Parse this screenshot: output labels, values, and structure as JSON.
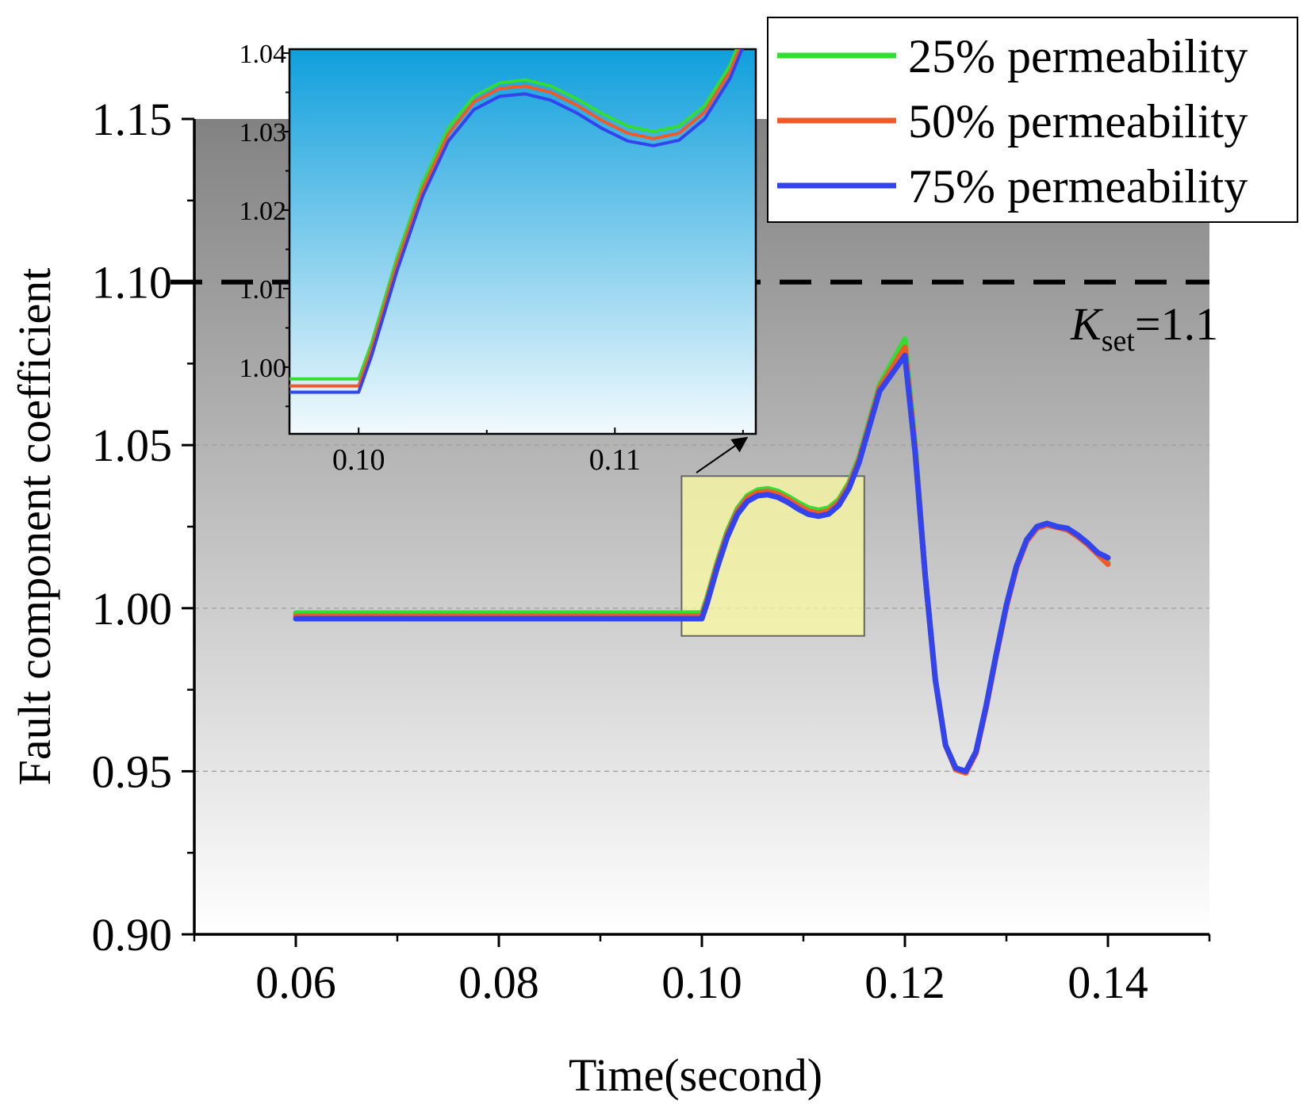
{
  "chart_data": {
    "type": "line",
    "title": "",
    "xlabel": "Time(second)",
    "ylabel": "Fault component coefficient",
    "xlim": [
      0.05,
      0.15
    ],
    "ylim": [
      0.9,
      1.15
    ],
    "x_ticks": [
      0.06,
      0.08,
      0.1,
      0.12,
      0.14
    ],
    "x_tick_labels": [
      "0.06",
      "0.08",
      "0.10",
      "0.12",
      "0.14"
    ],
    "y_ticks": [
      0.9,
      0.95,
      1.0,
      1.05,
      1.1,
      1.15
    ],
    "y_tick_labels": [
      "0.90",
      "0.95",
      "1.00",
      "1.05",
      "1.10",
      "1.15"
    ],
    "grid": "dashed at 0.95, 1.00, 1.05",
    "legend_position": "top-right",
    "threshold": {
      "value": 1.1,
      "label_main": "K",
      "label_sub": "set",
      "label_rest": "=1.1"
    },
    "series": [
      {
        "name": "25% permeability",
        "color": "#33dd33",
        "x": [
          0.06,
          0.1,
          0.1005,
          0.1015,
          0.1025,
          0.1035,
          0.1045,
          0.1055,
          0.1065,
          0.1075,
          0.1085,
          0.1095,
          0.1105,
          0.1115,
          0.1125,
          0.1135,
          0.1145,
          0.1155,
          0.1165,
          0.1175,
          0.12,
          0.121,
          0.122,
          0.123,
          0.124,
          0.125,
          0.126,
          0.127,
          0.128,
          0.129,
          0.13,
          0.131,
          0.132,
          0.133,
          0.134,
          0.135,
          0.136,
          0.137,
          0.138,
          0.139,
          0.14
        ],
        "y": [
          0.9985,
          0.9985,
          1.003,
          1.014,
          1.0235,
          1.0305,
          1.0345,
          1.0362,
          1.0366,
          1.0358,
          1.0342,
          1.0323,
          1.0307,
          1.03,
          1.0307,
          1.0333,
          1.0385,
          1.0465,
          1.0575,
          1.0685,
          1.0825,
          1.05,
          1.01,
          0.978,
          0.958,
          0.951,
          0.95,
          0.956,
          0.97,
          0.986,
          1.001,
          1.013,
          1.021,
          1.025,
          1.026,
          1.025,
          1.0245,
          1.0225,
          1.02,
          1.017,
          1.014
        ]
      },
      {
        "name": "50% permeability",
        "color": "#f05a28",
        "x": [
          0.06,
          0.1,
          0.1005,
          0.1015,
          0.1025,
          0.1035,
          0.1045,
          0.1055,
          0.1065,
          0.1075,
          0.1085,
          0.1095,
          0.1105,
          0.1115,
          0.1125,
          0.1135,
          0.1145,
          0.1155,
          0.1165,
          0.1175,
          0.12,
          0.121,
          0.122,
          0.123,
          0.124,
          0.125,
          0.126,
          0.127,
          0.128,
          0.129,
          0.13,
          0.131,
          0.132,
          0.133,
          0.134,
          0.135,
          0.136,
          0.137,
          0.138,
          0.139,
          0.14
        ],
        "y": [
          0.9976,
          0.9976,
          1.0022,
          1.0132,
          1.0227,
          1.0297,
          1.0338,
          1.0355,
          1.0358,
          1.035,
          1.0334,
          1.0314,
          1.0298,
          1.0291,
          1.0298,
          1.0325,
          1.0377,
          1.0457,
          1.0566,
          1.0676,
          1.08,
          1.049,
          1.01,
          0.978,
          0.958,
          0.9505,
          0.9495,
          0.9555,
          0.9695,
          0.9855,
          1.0005,
          1.0125,
          1.0205,
          1.0245,
          1.0255,
          1.0248,
          1.024,
          1.022,
          1.0195,
          1.0165,
          1.0135
        ]
      },
      {
        "name": "75% permeability",
        "color": "#3344ee",
        "x": [
          0.06,
          0.1,
          0.1005,
          0.1015,
          0.1025,
          0.1035,
          0.1045,
          0.1055,
          0.1065,
          0.1075,
          0.1085,
          0.1095,
          0.1105,
          0.1115,
          0.1125,
          0.1135,
          0.1145,
          0.1155,
          0.1165,
          0.1175,
          0.12,
          0.121,
          0.122,
          0.123,
          0.124,
          0.125,
          0.126,
          0.127,
          0.128,
          0.129,
          0.13,
          0.131,
          0.132,
          0.133,
          0.134,
          0.135,
          0.136,
          0.137,
          0.138,
          0.139,
          0.14
        ],
        "y": [
          0.9968,
          0.9968,
          1.0014,
          1.0123,
          1.0218,
          1.0288,
          1.0328,
          1.0345,
          1.0348,
          1.034,
          1.0324,
          1.0304,
          1.0288,
          1.0282,
          1.0289,
          1.0316,
          1.0368,
          1.0448,
          1.0557,
          1.0665,
          1.0775,
          1.048,
          1.01,
          0.978,
          0.958,
          0.951,
          0.95,
          0.956,
          0.97,
          0.986,
          1.001,
          1.013,
          1.021,
          1.025,
          1.026,
          1.025,
          1.0245,
          1.0225,
          1.02,
          1.017,
          1.0155
        ]
      }
    ],
    "inset": {
      "xlim": [
        0.0973,
        0.1155
      ],
      "ylim": [
        0.9915,
        1.0405
      ],
      "x_ticks": [
        0.1,
        0.11
      ],
      "x_tick_labels": [
        "0.10",
        "0.11"
      ],
      "y_ticks": [
        1.0,
        1.01,
        1.02,
        1.03,
        1.04
      ],
      "y_tick_labels": [
        "1.00",
        "1.01",
        "1.02",
        "1.03",
        "1.04"
      ],
      "zoom_region": {
        "x": [
          0.098,
          0.116
        ],
        "y": [
          0.9915,
          1.0405
        ]
      }
    }
  }
}
